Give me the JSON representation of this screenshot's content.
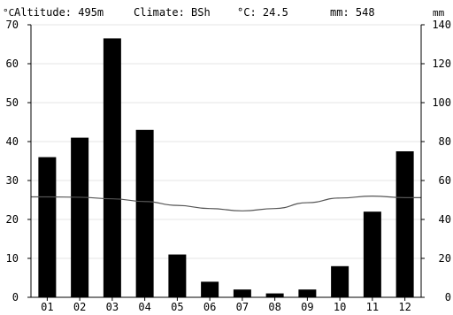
{
  "header": {
    "altitude": "Altitude: 495m",
    "climate": "Climate: BSh",
    "temp_mean": "°C: 24.5",
    "precip_total": "mm: 548",
    "left_unit": "°C",
    "right_unit": "mm"
  },
  "chart_data": {
    "type": "bar",
    "categories": [
      "01",
      "02",
      "03",
      "04",
      "05",
      "06",
      "07",
      "08",
      "09",
      "10",
      "11",
      "12"
    ],
    "series": [
      {
        "type": "bar",
        "axis": "right",
        "unit": "mm",
        "color": "#000000",
        "values": [
          72,
          82,
          133,
          86,
          22,
          8,
          4,
          2,
          4,
          16,
          44,
          75
        ]
      },
      {
        "type": "line",
        "axis": "left",
        "unit": "°C",
        "color": "#555555",
        "values": [
          25.8,
          25.7,
          25.3,
          24.6,
          23.6,
          22.8,
          22.2,
          22.8,
          24.3,
          25.5,
          26.0,
          25.6
        ]
      }
    ],
    "y_left": {
      "min": 0,
      "max": 70,
      "ticks": [
        0,
        10,
        20,
        30,
        40,
        50,
        60,
        70
      ]
    },
    "y_right": {
      "min": 0,
      "max": 140,
      "ticks": [
        0,
        20,
        40,
        60,
        80,
        100,
        120,
        140
      ]
    },
    "grid": true,
    "grid_color": "#e6e6e6"
  }
}
